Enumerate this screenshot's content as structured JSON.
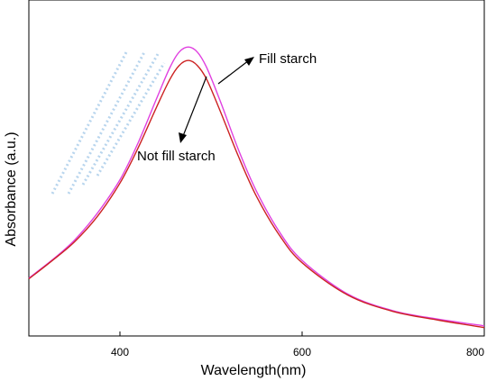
{
  "chart_data": {
    "type": "line",
    "title": "",
    "xlabel": "Wavelength(nm)",
    "ylabel": "Absorbance (a.u.)",
    "xlim": [
      300,
      800
    ],
    "ylim": [
      0,
      1.0
    ],
    "x_ticks": [
      400,
      600,
      800
    ],
    "y_ticks_labeled": false,
    "grid": false,
    "legend": "none",
    "series": [
      {
        "name": "Fill starch",
        "color": "#e040e0",
        "x": [
          300,
          325,
          350,
          375,
          400,
          420,
          440,
          455,
          465,
          475,
          485,
          495,
          510,
          530,
          550,
          575,
          600,
          650,
          700,
          750,
          800
        ],
        "y": [
          0.172,
          0.225,
          0.285,
          0.365,
          0.465,
          0.575,
          0.705,
          0.8,
          0.845,
          0.86,
          0.845,
          0.8,
          0.7,
          0.555,
          0.43,
          0.31,
          0.225,
          0.125,
          0.075,
          0.05,
          0.03
        ]
      },
      {
        "name": "Not fill starch",
        "color": "#cc2222",
        "x": [
          300,
          325,
          350,
          375,
          400,
          420,
          440,
          455,
          465,
          475,
          485,
          495,
          510,
          530,
          550,
          575,
          600,
          650,
          700,
          750,
          800
        ],
        "y": [
          0.17,
          0.223,
          0.28,
          0.355,
          0.455,
          0.56,
          0.68,
          0.765,
          0.805,
          0.82,
          0.805,
          0.765,
          0.67,
          0.535,
          0.415,
          0.3,
          0.218,
          0.122,
          0.073,
          0.047,
          0.025
        ]
      }
    ],
    "annotations": [
      {
        "text": "Fill starch",
        "series": "Fill starch",
        "at_x": 520,
        "at_y": 0.62
      },
      {
        "text": "Not fill starch",
        "series": "Not fill starch",
        "at_x": 478,
        "at_y": 0.78
      }
    ]
  }
}
